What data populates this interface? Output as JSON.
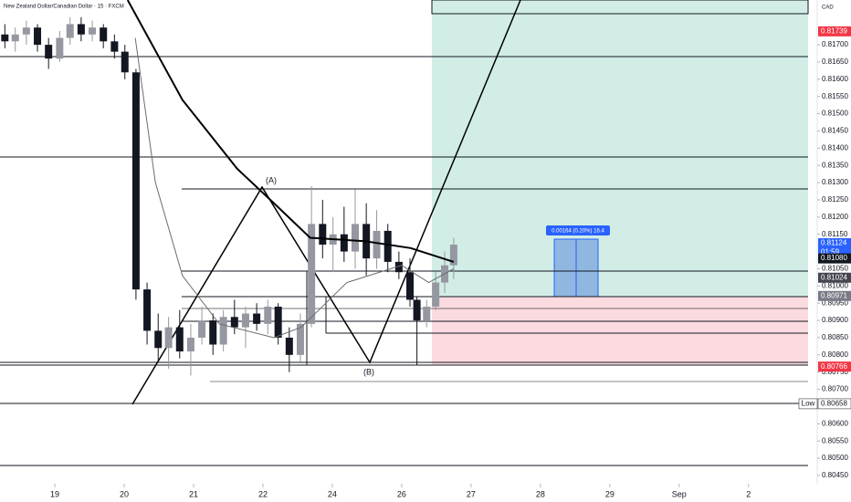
{
  "chart_data": {
    "type": "candlestick",
    "title": "New Zealand Dollar/Canadian Dollar · 15 · FXCM",
    "currency": "CAD",
    "up_color": "#9598a1",
    "down_color": "#131722",
    "ylim": [
      0.80426,
      0.8183
    ],
    "xlim": [
      -0.79,
      10.99
    ],
    "yticks": [
      {
        "value": 0.8045,
        "label": "0.80450"
      },
      {
        "value": 0.805,
        "label": "0.80500"
      },
      {
        "value": 0.8055,
        "label": "0.80550"
      },
      {
        "value": 0.806,
        "label": "0.80600"
      },
      {
        "value": 0.807,
        "label": "0.80700"
      },
      {
        "value": 0.8075,
        "label": "0.80750"
      },
      {
        "value": 0.808,
        "label": "0.80800"
      },
      {
        "value": 0.8085,
        "label": "0.80850"
      },
      {
        "value": 0.809,
        "label": "0.80900"
      },
      {
        "value": 0.8095,
        "label": "0.80950"
      },
      {
        "value": 0.81,
        "label": "0.81000"
      },
      {
        "value": 0.8105,
        "label": "0.81050"
      },
      {
        "value": 0.8115,
        "label": "0.81150"
      },
      {
        "value": 0.812,
        "label": "0.81200"
      },
      {
        "value": 0.8125,
        "label": "0.81250"
      },
      {
        "value": 0.813,
        "label": "0.81300"
      },
      {
        "value": 0.8135,
        "label": "0.81350"
      },
      {
        "value": 0.814,
        "label": "0.81400"
      },
      {
        "value": 0.8145,
        "label": "0.81450"
      },
      {
        "value": 0.815,
        "label": "0.81500"
      },
      {
        "value": 0.8155,
        "label": "0.81550"
      },
      {
        "value": 0.816,
        "label": "0.81600"
      },
      {
        "value": 0.8165,
        "label": "0.81650"
      },
      {
        "value": 0.817,
        "label": "0.81700"
      }
    ],
    "xticks": [
      {
        "value": 0,
        "label": "19"
      },
      {
        "value": 1,
        "label": "20"
      },
      {
        "value": 2,
        "label": "21"
      },
      {
        "value": 3,
        "label": "22"
      },
      {
        "value": 4,
        "label": "24"
      },
      {
        "value": 5,
        "label": "26"
      },
      {
        "value": 6,
        "label": "27"
      },
      {
        "value": 7,
        "label": "28"
      },
      {
        "value": 8,
        "label": "29"
      },
      {
        "value": 9,
        "label": "Sep"
      },
      {
        "value": 10,
        "label": "2"
      }
    ],
    "x": [
      -0.72,
      -0.57,
      -0.41,
      -0.25,
      -0.09,
      0.07,
      0.22,
      0.38,
      0.54,
      0.7,
      0.86,
      1.01,
      1.17,
      1.33,
      1.49,
      1.64,
      1.8,
      1.96,
      2.12,
      2.28,
      2.43,
      2.59,
      2.75,
      2.91,
      3.07,
      3.22,
      3.38,
      3.54,
      3.7,
      3.86,
      4.01,
      4.17,
      4.33,
      4.49,
      4.64,
      4.8,
      4.96,
      5.12,
      5.22,
      5.36,
      5.49,
      5.62,
      5.75
    ],
    "open": [
      0.8173,
      0.8171,
      0.8173,
      0.8175,
      0.817,
      0.8166,
      0.8172,
      0.8176,
      0.8173,
      0.8175,
      0.8171,
      0.8168,
      0.8162,
      0.8099,
      0.8087,
      0.8082,
      0.8088,
      0.8081,
      0.8085,
      0.809,
      0.8083,
      0.8091,
      0.8088,
      0.8092,
      0.8089,
      0.8094,
      0.8085,
      0.808,
      0.8089,
      0.8118,
      0.8112,
      0.8115,
      0.811,
      0.8118,
      0.8108,
      0.8116,
      0.8107,
      0.8104,
      0.8096,
      0.809,
      0.8094,
      0.8101,
      0.8106
    ],
    "high": [
      0.8176,
      0.8175,
      0.8177,
      0.8176,
      0.8172,
      0.8174,
      0.8178,
      0.8178,
      0.8177,
      0.8176,
      0.8173,
      0.817,
      0.8163,
      0.8101,
      0.8092,
      0.8091,
      0.8093,
      0.8089,
      0.8094,
      0.8092,
      0.8093,
      0.8096,
      0.8094,
      0.8095,
      0.8096,
      0.8095,
      0.8088,
      0.8092,
      0.8129,
      0.8125,
      0.812,
      0.8123,
      0.8128,
      0.8124,
      0.8122,
      0.8118,
      0.811,
      0.8108,
      0.8097,
      0.8096,
      0.8104,
      0.811,
      0.8114
    ],
    "low": [
      0.8169,
      0.8168,
      0.817,
      0.8168,
      0.8163,
      0.8165,
      0.817,
      0.8171,
      0.8171,
      0.8169,
      0.8166,
      0.816,
      0.8096,
      0.8083,
      0.8078,
      0.8076,
      0.8079,
      0.8074,
      0.8083,
      0.808,
      0.8081,
      0.8086,
      0.8082,
      0.8087,
      0.8086,
      0.8083,
      0.8075,
      0.8078,
      0.8088,
      0.8108,
      0.8104,
      0.8107,
      0.8105,
      0.8103,
      0.8105,
      0.8104,
      0.8102,
      0.8094,
      0.8077,
      0.8088,
      0.8093,
      0.8098,
      0.8102
    ],
    "close": [
      0.8171,
      0.8173,
      0.8175,
      0.817,
      0.8166,
      0.8172,
      0.8176,
      0.8173,
      0.8175,
      0.8171,
      0.8168,
      0.8162,
      0.8099,
      0.8087,
      0.8082,
      0.8088,
      0.8081,
      0.8085,
      0.809,
      0.8083,
      0.8091,
      0.8088,
      0.8092,
      0.8089,
      0.8094,
      0.8085,
      0.808,
      0.8089,
      0.8118,
      0.8112,
      0.8115,
      0.811,
      0.8118,
      0.8108,
      0.8116,
      0.8107,
      0.8104,
      0.8096,
      0.809,
      0.8094,
      0.8101,
      0.8106,
      0.8112
    ],
    "overlays": [
      {
        "color": "#000000",
        "width": 2,
        "x": [
          1.05,
          1.84,
          2.63,
          3.16,
          3.68,
          4.47,
          5.13,
          5.75
        ],
        "values": [
          0.8183,
          0.8154,
          0.8134,
          0.8124,
          0.8114,
          0.8113,
          0.8111,
          0.8107
        ]
      },
      {
        "color": "#6b6b6b",
        "width": 1,
        "x": [
          1.16,
          1.45,
          1.84,
          2.37,
          3.16,
          3.55,
          4.21,
          5.0,
          5.39,
          5.75
        ],
        "values": [
          0.8172,
          0.813,
          0.8103,
          0.8089,
          0.8085,
          0.8088,
          0.8101,
          0.8106,
          0.8101,
          0.8105
        ]
      }
    ],
    "price_labels": [
      {
        "value": 0.81739,
        "label": "0.81739",
        "color": "#f23645"
      },
      {
        "value": 0.81124,
        "label": "0.81124",
        "color": "#2962ff",
        "sub": "01:59"
      },
      {
        "value": 0.8108,
        "label": "0.81080",
        "color": "#131722"
      },
      {
        "value": 0.81024,
        "label": "0.81024",
        "color": "#434651"
      },
      {
        "value": 0.80971,
        "label": "0.80971",
        "color": "#787b86"
      },
      {
        "value": 0.80766,
        "label": "0.80766",
        "color": "#f23645"
      },
      {
        "value": 0.80658,
        "label": "0.80658",
        "color": "#ffffff",
        "tag": "Low"
      }
    ],
    "annotations": {
      "a": "(A)",
      "b": "(B)",
      "measure": "0.00164 (0.20%) 16.4"
    }
  }
}
